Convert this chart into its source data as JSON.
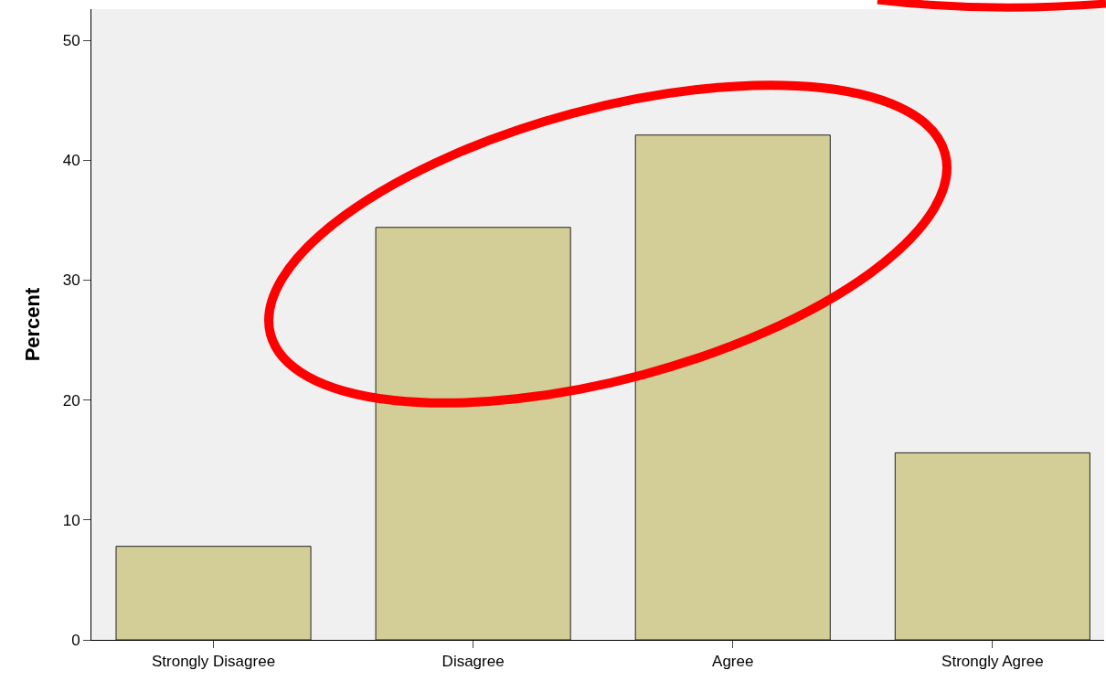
{
  "chart_data": {
    "type": "bar",
    "ylabel": "Percent",
    "categories": [
      "Strongly Disagree",
      "Disagree",
      "Agree",
      "Strongly Agree"
    ],
    "values": [
      7.8,
      34.4,
      42.1,
      15.6
    ],
    "color": "#d3ce97",
    "ylim": [
      0,
      52.6
    ],
    "yticks": [
      0,
      10,
      20,
      30,
      40,
      50
    ]
  }
}
